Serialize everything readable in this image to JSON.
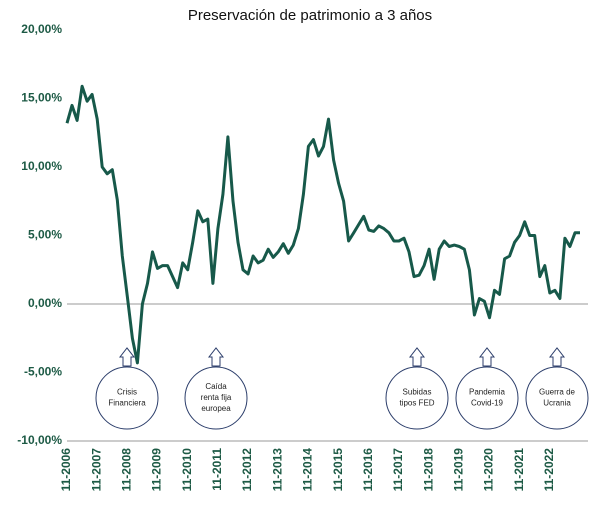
{
  "chart_data": {
    "type": "line",
    "title": "Preservación de patrimonio a 3 años",
    "categories": [
      "11-2006",
      null,
      null,
      null,
      null,
      null,
      "11-2007",
      null,
      null,
      null,
      null,
      null,
      "11-2008",
      null,
      null,
      null,
      null,
      null,
      "11-2009",
      null,
      null,
      null,
      null,
      null,
      "11-2010",
      null,
      null,
      null,
      null,
      null,
      "11-2011",
      null,
      null,
      null,
      null,
      null,
      "11-2012",
      null,
      null,
      null,
      null,
      null,
      "11-2013",
      null,
      null,
      null,
      null,
      null,
      "11-2014",
      null,
      null,
      null,
      null,
      null,
      "11-2015",
      null,
      null,
      null,
      null,
      null,
      "11-2016",
      null,
      null,
      null,
      null,
      null,
      "11-2017",
      null,
      null,
      null,
      null,
      null,
      "11-2018",
      null,
      null,
      null,
      null,
      null,
      "11-2019",
      null,
      null,
      null,
      null,
      null,
      "11-2020",
      null,
      null,
      null,
      null,
      null,
      "11-2021",
      null,
      null,
      null,
      null,
      null,
      "11-2022",
      null,
      null,
      null,
      null,
      null,
      null
    ],
    "series": [
      {
        "color": "#17594a",
        "values": [
          13.2,
          14.5,
          13.4,
          15.9,
          14.8,
          15.3,
          13.5,
          10,
          9.5,
          9.8,
          7.6,
          3.5,
          0.5,
          -2.5,
          -4.3,
          0,
          1.5,
          3.8,
          2.6,
          2.8,
          2.8,
          2,
          1.2,
          3,
          2.5,
          4.5,
          6.8,
          6,
          6.2,
          1.5,
          5.5,
          8,
          12.2,
          7.5,
          4.5,
          2.5,
          2.2,
          3.5,
          3,
          3.2,
          4,
          3.4,
          3.8,
          4.4,
          3.7,
          4.3,
          5.5,
          8,
          11.5,
          12,
          10.8,
          11.5,
          13.5,
          10.5,
          8.8,
          7.5,
          4.6,
          5.2,
          5.8,
          6.4,
          5.4,
          5.3,
          5.7,
          5.5,
          5.2,
          4.6,
          4.6,
          4.8,
          3.8,
          2,
          2.1,
          2.8,
          4,
          1.8,
          4,
          4.6,
          4.2,
          4.3,
          4.2,
          4,
          2.5,
          -0.8,
          0.4,
          0.2,
          -1,
          1,
          0.7,
          3.3,
          3.5,
          4.5,
          5,
          6,
          5,
          5,
          2,
          2.8,
          0.8,
          1,
          0.4,
          4.8,
          4.2,
          5.2,
          5.2
        ]
      }
    ],
    "ylim": [
      -10,
      20
    ],
    "yticks": [
      {
        "value": -10,
        "label": "-10,00%"
      },
      {
        "value": -5,
        "label": "-5,00%"
      },
      {
        "value": 0,
        "label": "0,00%"
      },
      {
        "value": 5,
        "label": "5,00%"
      },
      {
        "value": 10,
        "label": "10,00%"
      },
      {
        "value": 15,
        "label": "15,00%"
      },
      {
        "value": 20,
        "label": "20,00%"
      }
    ],
    "annotations": [
      {
        "lines": [
          "Crisis",
          "Financiera"
        ]
      },
      {
        "lines": [
          "Caída",
          "renta fija",
          "europea"
        ]
      },
      {
        "lines": [
          "Subidas",
          "tipos FED"
        ]
      },
      {
        "lines": [
          "Pandemia",
          "Covid-19"
        ]
      },
      {
        "lines": [
          "Guerra de",
          "Ucrania"
        ]
      }
    ]
  }
}
